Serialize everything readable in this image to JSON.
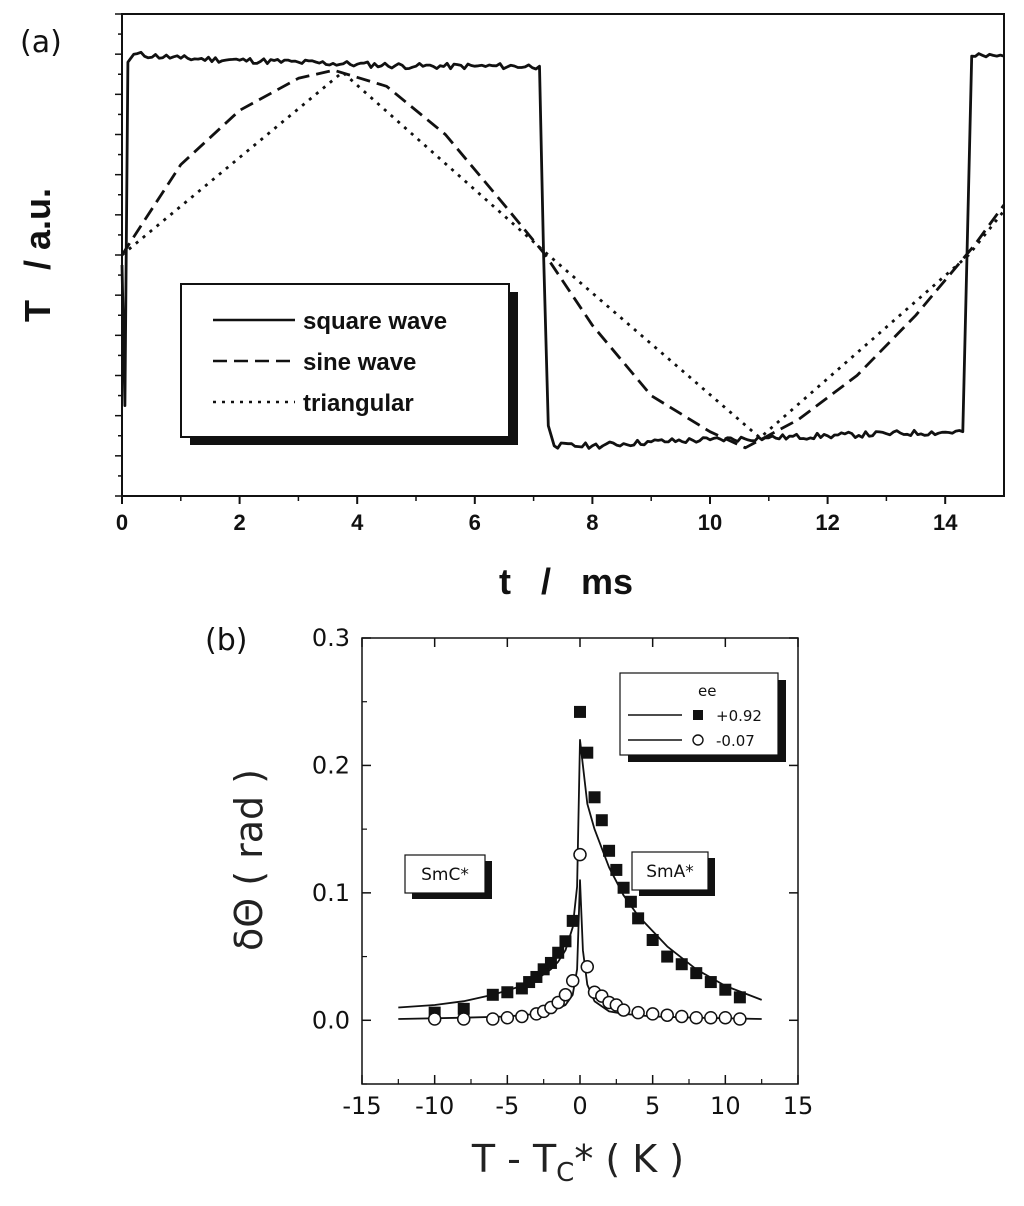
{
  "chart_data": [
    {
      "panel_label": "(a)",
      "type": "line",
      "xlabel": "t   /   ms",
      "ylabel": "T   / a.u.",
      "xlim": [
        0,
        15
      ],
      "ylim": [
        -1.2,
        1.2
      ],
      "x_ticks": [
        0,
        2,
        4,
        6,
        8,
        10,
        12,
        14
      ],
      "y_tick_labels_shown": false,
      "grid": false,
      "legend_position": "lower-left (boxed, shadowed)",
      "series": [
        {
          "name": "square wave",
          "style": "solid",
          "x": [
            0.0,
            0.05,
            0.1,
            0.2,
            1,
            2,
            3,
            4,
            5,
            6,
            7.1,
            7.17,
            7.25,
            7.35,
            8,
            9,
            10,
            11,
            12,
            13,
            14.3,
            14.37,
            14.45,
            15.0
          ],
          "y": [
            -0.05,
            -0.75,
            0.96,
            1.0,
            0.98,
            0.97,
            0.96,
            0.95,
            0.94,
            0.94,
            0.94,
            0.0,
            -0.85,
            -0.95,
            -0.95,
            -0.93,
            -0.92,
            -0.91,
            -0.9,
            -0.89,
            -0.88,
            0.0,
            0.99,
            0.99
          ]
        },
        {
          "name": "sine wave",
          "style": "dashed",
          "x": [
            0,
            1,
            2,
            3,
            3.6,
            4.5,
            5.5,
            6.5,
            7.2,
            8,
            9,
            10,
            10.6,
            11.5,
            12.5,
            13.5,
            14.5,
            15
          ],
          "y": [
            0.0,
            0.45,
            0.72,
            0.88,
            0.92,
            0.84,
            0.6,
            0.25,
            0.0,
            -0.35,
            -0.7,
            -0.88,
            -0.96,
            -0.82,
            -0.6,
            -0.3,
            0.05,
            0.25
          ]
        },
        {
          "name": "triangular",
          "style": "dotted",
          "x": [
            0,
            3.75,
            7.25,
            10.85,
            14.4,
            15
          ],
          "y": [
            0.0,
            0.91,
            0.0,
            -0.91,
            0.0,
            0.22
          ]
        }
      ]
    },
    {
      "panel_label": "(b)",
      "type": "scatter",
      "xlabel": "T - T",
      "xlabel_sub": "C",
      "xlabel_tail": "* ( K )",
      "ylabel": "δΘ ( rad )",
      "xlim": [
        -15,
        15
      ],
      "ylim": [
        -0.05,
        0.3
      ],
      "x_ticks": [
        -15,
        -10,
        -5,
        0,
        5,
        10,
        15
      ],
      "y_ticks": [
        0.0,
        0.1,
        0.2,
        0.3
      ],
      "grid": false,
      "legend_title": "ee",
      "legend_position": "top-right (boxed, shadowed)",
      "annotations": [
        "SmC*",
        "SmA*"
      ],
      "series": [
        {
          "name": "+0.92",
          "marker": "filled-square",
          "x": [
            -10,
            -8,
            -6,
            -5,
            -4,
            -3.5,
            -3,
            -2.5,
            -2,
            -1.5,
            -1,
            -0.5,
            0,
            0.5,
            1,
            1.5,
            2,
            2.5,
            3,
            3.5,
            4,
            5,
            6,
            7,
            8,
            9,
            10,
            11
          ],
          "y": [
            0.006,
            0.009,
            0.02,
            0.022,
            0.025,
            0.03,
            0.034,
            0.04,
            0.045,
            0.053,
            0.062,
            0.078,
            0.242,
            0.21,
            0.175,
            0.157,
            0.133,
            0.118,
            0.104,
            0.093,
            0.08,
            0.063,
            0.05,
            0.044,
            0.037,
            0.03,
            0.024,
            0.018
          ]
        },
        {
          "name": "-0.07",
          "marker": "open-circle",
          "x": [
            -10,
            -8,
            -6,
            -5,
            -4,
            -3,
            -2.5,
            -2,
            -1.5,
            -1,
            -0.5,
            0,
            0.5,
            1,
            1.5,
            2,
            2.5,
            3,
            4,
            5,
            6,
            7,
            8,
            9,
            10,
            11
          ],
          "y": [
            0.001,
            0.001,
            0.001,
            0.002,
            0.003,
            0.005,
            0.007,
            0.01,
            0.014,
            0.02,
            0.031,
            0.13,
            0.042,
            0.022,
            0.019,
            0.014,
            0.012,
            0.008,
            0.006,
            0.005,
            0.004,
            0.003,
            0.002,
            0.002,
            0.002,
            0.001
          ]
        }
      ],
      "fits": [
        {
          "for": "+0.92",
          "style": "solid",
          "x": [
            -12.5,
            -10,
            -8,
            -6,
            -4,
            -3,
            -2,
            -1.5,
            -1,
            -0.5,
            -0.2,
            0,
            0.2,
            0.5,
            1,
            1.5,
            2,
            3,
            4,
            6,
            8,
            10,
            12.5
          ],
          "y": [
            0.01,
            0.012,
            0.015,
            0.02,
            0.027,
            0.032,
            0.04,
            0.046,
            0.055,
            0.073,
            0.105,
            0.22,
            0.2,
            0.17,
            0.15,
            0.135,
            0.12,
            0.098,
            0.082,
            0.058,
            0.04,
            0.027,
            0.016
          ]
        },
        {
          "for": "-0.07",
          "style": "solid",
          "x": [
            -12.5,
            -8,
            -5,
            -3,
            -2,
            -1,
            -0.5,
            -0.2,
            0,
            0.2,
            0.5,
            1,
            2,
            3,
            5,
            8,
            12.5
          ],
          "y": [
            0.001,
            0.002,
            0.003,
            0.005,
            0.007,
            0.012,
            0.02,
            0.04,
            0.11,
            0.055,
            0.028,
            0.015,
            0.007,
            0.005,
            0.003,
            0.002,
            0.001
          ]
        }
      ]
    }
  ]
}
